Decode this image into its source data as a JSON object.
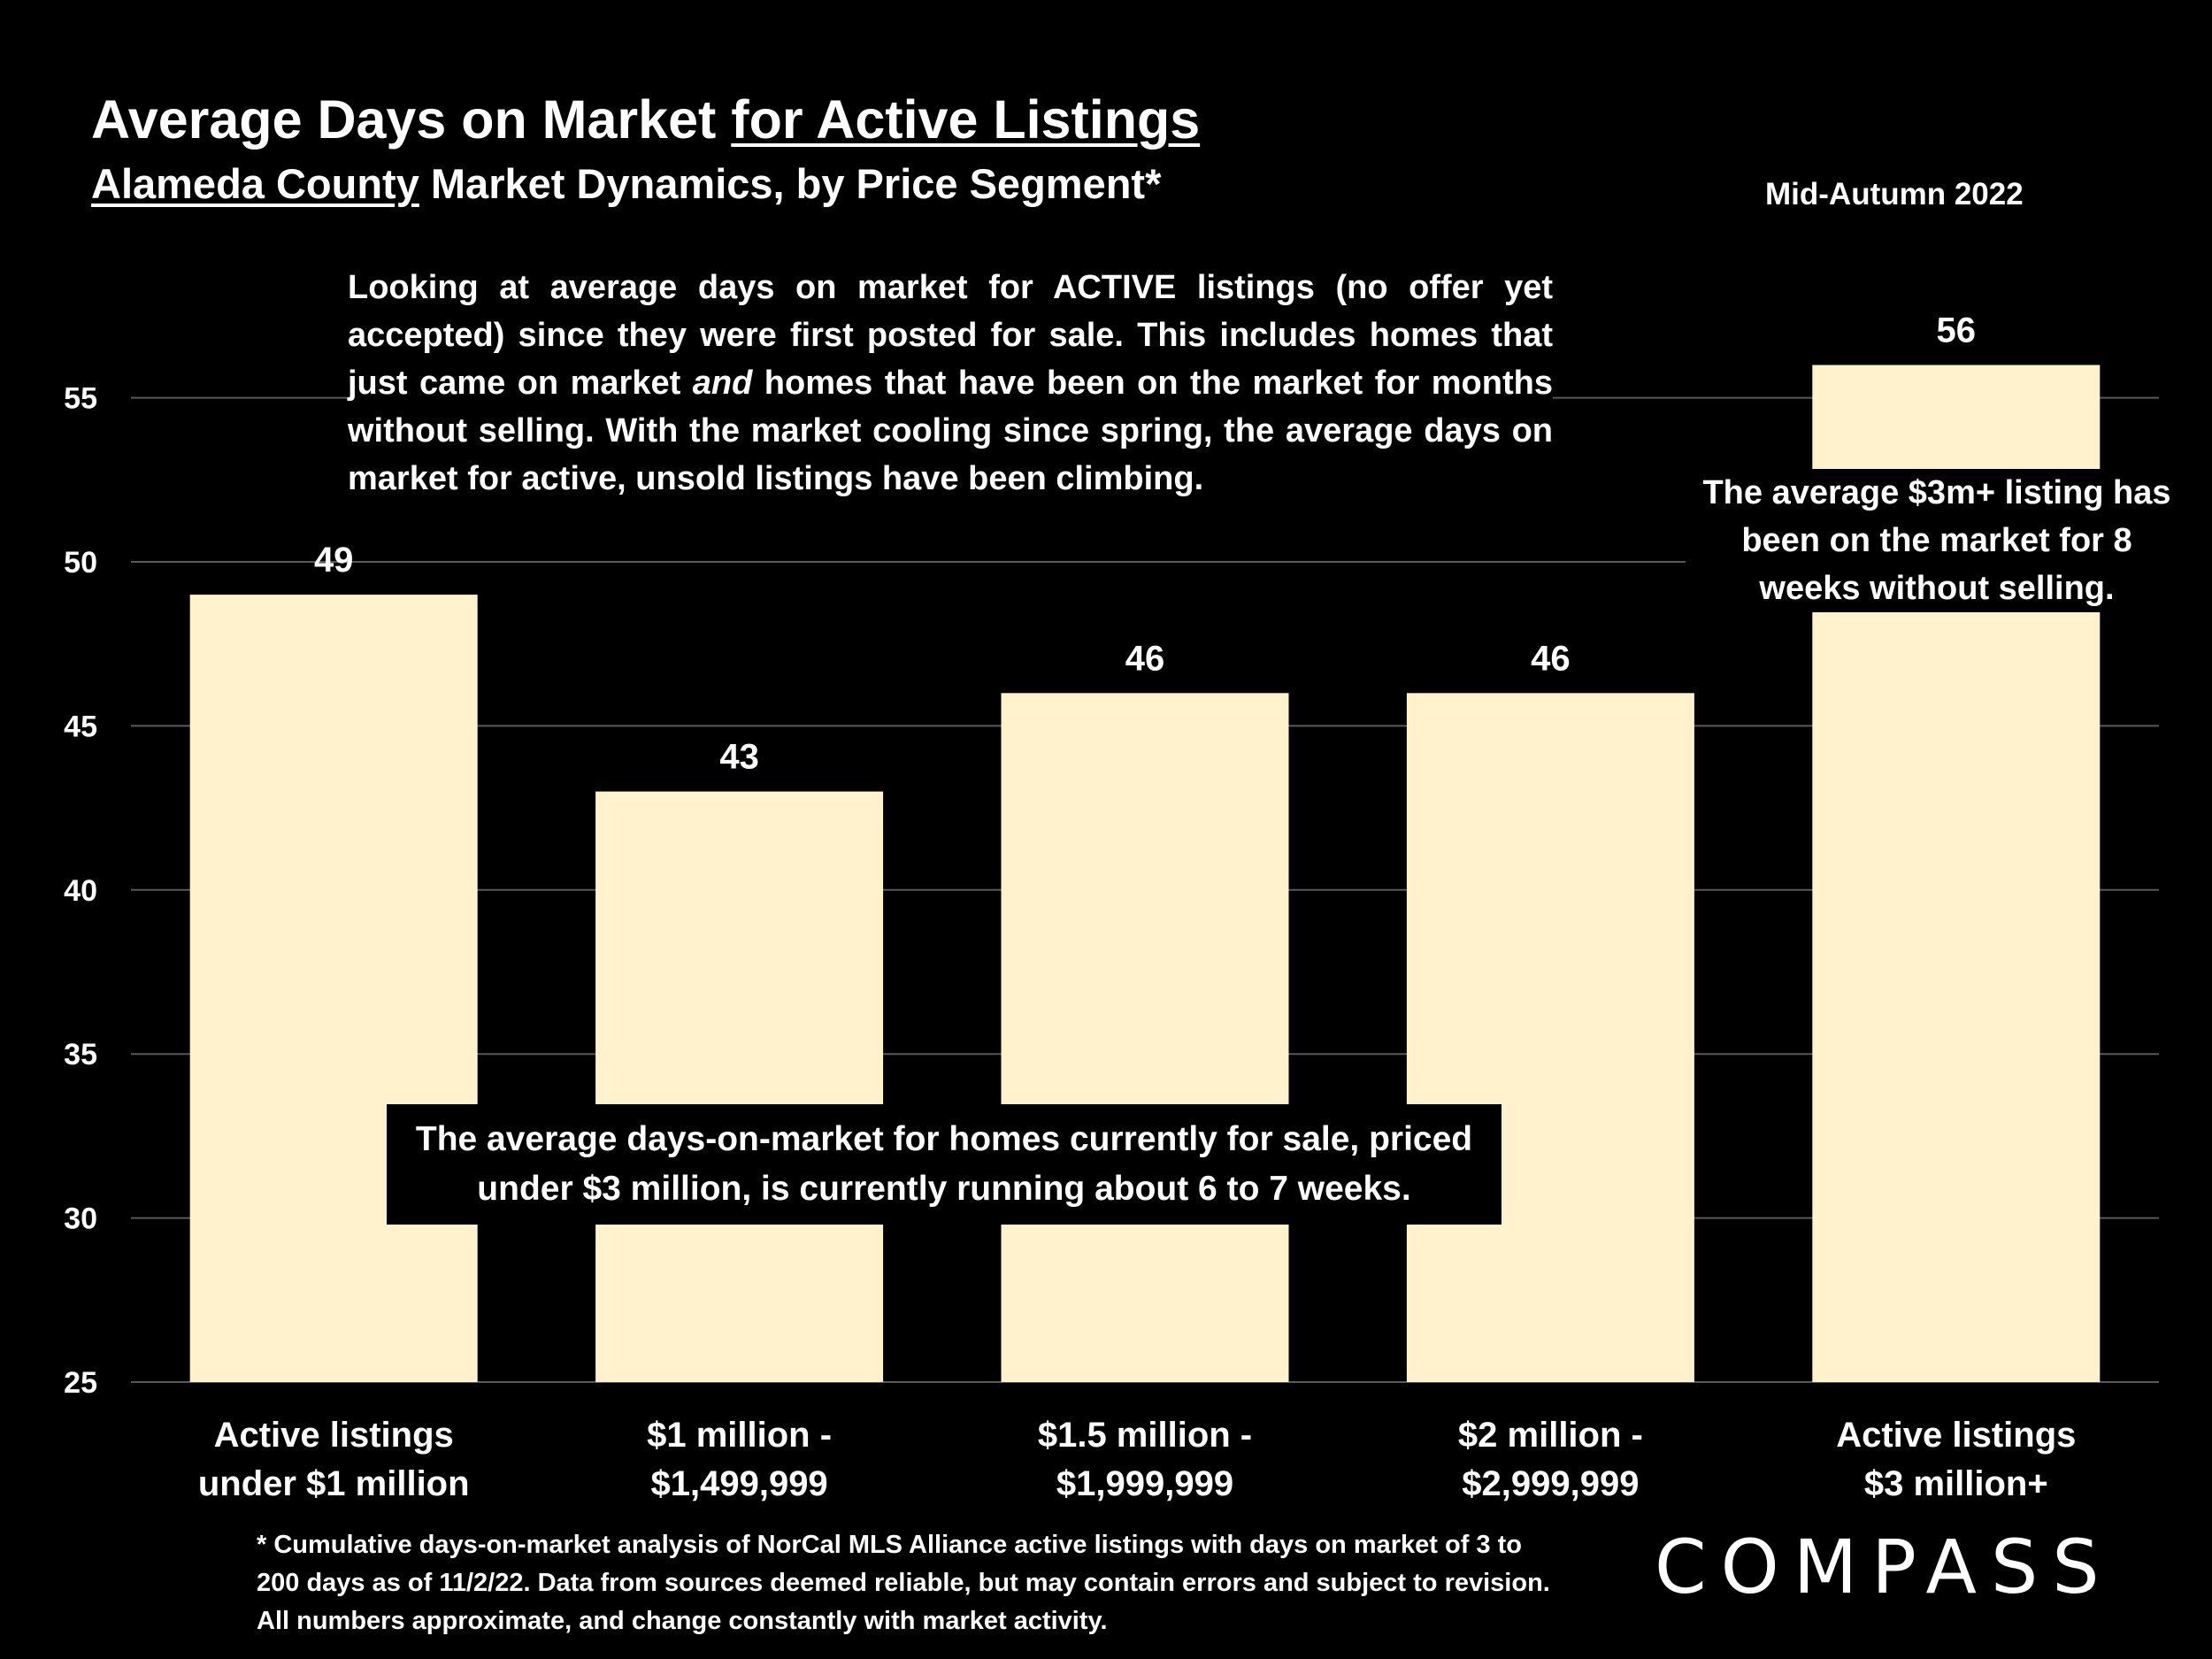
{
  "header": {
    "title_part1": "Average Days on Market ",
    "title_part2": "for Active Listings",
    "subtitle_part1": "Alameda County",
    "subtitle_part2": " Market Dynamics, by Price Segment*",
    "period": "Mid-Autumn 2022"
  },
  "annotations": {
    "top_part1": "Looking at average days on market for ACTIVE listings (no offer yet accepted) since they were first posted for sale. This includes homes that just came on market ",
    "top_italic": "and",
    "top_part2": " homes that have been on the market for months without selling. With the market cooling since spring, the average days on market for active, unsold listings have been climbing.",
    "right": "The average $3m+ listing has been on the market for 8 weeks without selling.",
    "bottom": "The average days-on-market for homes currently for sale, priced under $3 million, is currently running about 6 to 7 weeks."
  },
  "footnote": "* Cumulative days-on-market analysis of NorCal MLS Alliance active listings with days on market of 3 to 200 days as of 11/2/22. Data from sources deemed reliable, but may contain errors and subject to revision. All numbers approximate, and change constantly with market activity.",
  "logo": "COMPASS",
  "colors": {
    "bar": "#FFF2CC",
    "background": "#000000",
    "gridline": "#595959",
    "text": "#FFFFFF"
  },
  "chart_data": {
    "type": "bar",
    "categories": [
      [
        "Active listings",
        "under $1 million"
      ],
      [
        "$1 million -",
        "$1,499,999"
      ],
      [
        "$1.5 million -",
        "$1,999,999"
      ],
      [
        "$2 million -",
        "$2,999,999"
      ],
      [
        "Active listings",
        "$3 million+"
      ]
    ],
    "values": [
      49,
      43,
      46,
      46,
      56
    ],
    "data_labels": [
      "49",
      "43",
      "46",
      "46",
      "56"
    ],
    "ylim": [
      25,
      57
    ],
    "yticks": [
      25,
      30,
      35,
      40,
      45,
      50,
      55
    ],
    "grid": true,
    "title": "",
    "xlabel": "",
    "ylabel": ""
  }
}
